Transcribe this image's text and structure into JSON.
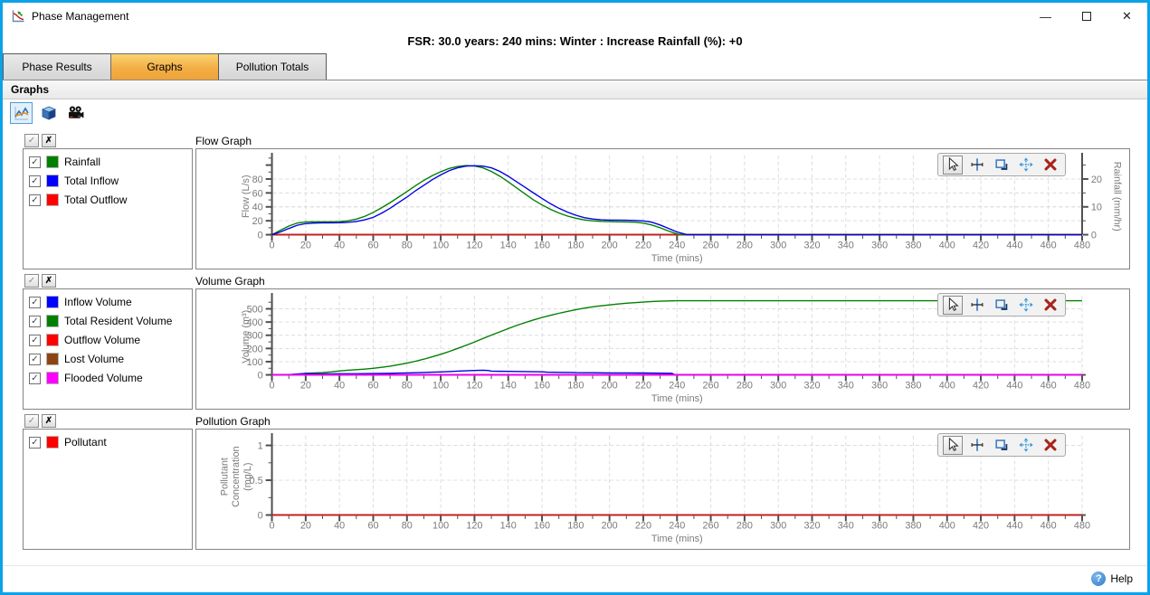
{
  "window": {
    "title": "Phase Management",
    "controls": {
      "minimize": "—",
      "close": "✕"
    }
  },
  "header": {
    "title": "FSR: 30.0 years: 240 mins: Winter : Increase Rainfall (%): +0"
  },
  "tabs": [
    {
      "label": "Phase Results",
      "active": false
    },
    {
      "label": "Graphs",
      "active": true
    },
    {
      "label": "Pollution Totals",
      "active": false
    }
  ],
  "section": {
    "title": "Graphs"
  },
  "legend_controls": {
    "check_glyph": "✓",
    "uncheck_glyph": "✗"
  },
  "rows": [
    {
      "legend_items": [
        {
          "label": "Rainfall",
          "color": "#008000",
          "checked": true
        },
        {
          "label": "Total Inflow",
          "color": "#0000ff",
          "checked": true
        },
        {
          "label": "Total Outflow",
          "color": "#ff0000",
          "checked": true
        }
      ]
    },
    {
      "legend_items": [
        {
          "label": "Inflow Volume",
          "color": "#0000ff",
          "checked": true
        },
        {
          "label": "Total Resident Volume",
          "color": "#008000",
          "checked": true
        },
        {
          "label": "Outflow Volume",
          "color": "#ff0000",
          "checked": true
        },
        {
          "label": "Lost Volume",
          "color": "#8b4513",
          "checked": true
        },
        {
          "label": "Flooded Volume",
          "color": "#ff00ff",
          "checked": true
        }
      ]
    },
    {
      "legend_items": [
        {
          "label": "Pollutant",
          "color": "#ff0000",
          "checked": true
        }
      ]
    }
  ],
  "chart_data": [
    {
      "type": "line",
      "title": "Flow Graph",
      "xlabel": "Time (mins)",
      "ylabel": "Flow (L/s)",
      "y2label": "Rainfall (mm/hr)",
      "xlim": [
        0,
        480
      ],
      "xstep": 20,
      "xminor": 10,
      "xticks": [
        0,
        20,
        40,
        60,
        80,
        100,
        120,
        140,
        160,
        180,
        200,
        220,
        240,
        260,
        280,
        300,
        320,
        340,
        360,
        380,
        400,
        420,
        440,
        460,
        480
      ],
      "ylim": [
        0,
        110
      ],
      "yticks": [
        0,
        20,
        40,
        60,
        80
      ],
      "yminor": 10,
      "y2lim": [
        0,
        27.5
      ],
      "y2ticks": [
        0,
        10,
        20
      ],
      "y2minor": 5,
      "grid": true,
      "legend_position": "left-panel",
      "series": [
        {
          "name": "Total Outflow",
          "color": "#c41e1e",
          "width": 2,
          "points": [
            [
              0,
              0
            ],
            [
              480,
              0
            ]
          ]
        },
        {
          "name": "Rainfall",
          "color": "#008000",
          "axis": "y2",
          "points": [
            [
              0,
              0
            ],
            [
              5,
              1.6
            ],
            [
              10,
              3.1
            ],
            [
              15,
              4.2
            ],
            [
              20,
              4.6
            ],
            [
              25,
              4.65
            ],
            [
              30,
              4.65
            ],
            [
              35,
              4.65
            ],
            [
              40,
              4.7
            ],
            [
              45,
              5
            ],
            [
              50,
              5.6
            ],
            [
              55,
              6.6
            ],
            [
              60,
              8
            ],
            [
              65,
              9.7
            ],
            [
              70,
              11.5
            ],
            [
              75,
              13.5
            ],
            [
              80,
              15.5
            ],
            [
              85,
              17.6
            ],
            [
              90,
              19.5
            ],
            [
              95,
              21.2
            ],
            [
              100,
              22.6
            ],
            [
              105,
              23.8
            ],
            [
              110,
              24.5
            ],
            [
              115,
              24.8
            ],
            [
              120,
              24.7
            ],
            [
              125,
              24
            ],
            [
              130,
              22.7
            ],
            [
              135,
              21
            ],
            [
              140,
              19
            ],
            [
              145,
              16.8
            ],
            [
              150,
              14.6
            ],
            [
              155,
              12.5
            ],
            [
              160,
              10.7
            ],
            [
              165,
              9.1
            ],
            [
              170,
              7.8
            ],
            [
              175,
              6.7
            ],
            [
              180,
              5.9
            ],
            [
              185,
              5.3
            ],
            [
              190,
              5
            ],
            [
              195,
              4.8
            ],
            [
              200,
              4.7
            ],
            [
              205,
              4.65
            ],
            [
              210,
              4.6
            ],
            [
              215,
              4.5
            ],
            [
              220,
              4.2
            ],
            [
              225,
              3.5
            ],
            [
              230,
              2.5
            ],
            [
              235,
              1.3
            ],
            [
              240,
              0.3
            ],
            [
              243,
              0
            ],
            [
              480,
              0
            ]
          ]
        },
        {
          "name": "Total Inflow",
          "color": "#0000e6",
          "points": [
            [
              0,
              0
            ],
            [
              5,
              4
            ],
            [
              10,
              9
            ],
            [
              15,
              13.5
            ],
            [
              20,
              16
            ],
            [
              25,
              16.8
            ],
            [
              30,
              17
            ],
            [
              35,
              17
            ],
            [
              40,
              17.2
            ],
            [
              45,
              17.8
            ],
            [
              50,
              19
            ],
            [
              55,
              21.5
            ],
            [
              60,
              25
            ],
            [
              65,
              31
            ],
            [
              70,
              38
            ],
            [
              75,
              46
            ],
            [
              80,
              54
            ],
            [
              85,
              63
            ],
            [
              90,
              71
            ],
            [
              95,
              79
            ],
            [
              100,
              86
            ],
            [
              105,
              92
            ],
            [
              110,
              96
            ],
            [
              115,
              98.5
            ],
            [
              120,
              99
            ],
            [
              125,
              98.5
            ],
            [
              130,
              96
            ],
            [
              135,
              91
            ],
            [
              140,
              84
            ],
            [
              145,
              76
            ],
            [
              150,
              68
            ],
            [
              155,
              60
            ],
            [
              160,
              52
            ],
            [
              165,
              44.5
            ],
            [
              170,
              38
            ],
            [
              175,
              32.5
            ],
            [
              180,
              28
            ],
            [
              185,
              24.5
            ],
            [
              190,
              22.5
            ],
            [
              195,
              21.5
            ],
            [
              200,
              21
            ],
            [
              205,
              21
            ],
            [
              210,
              20.8
            ],
            [
              215,
              20.5
            ],
            [
              220,
              19.8
            ],
            [
              225,
              18
            ],
            [
              230,
              14
            ],
            [
              235,
              9
            ],
            [
              240,
              4
            ],
            [
              246,
              0
            ],
            [
              480,
              0
            ]
          ]
        }
      ]
    },
    {
      "type": "line",
      "title": "Volume Graph",
      "xlabel": "Time (mins)",
      "ylabel": "Volume (m³)",
      "xlim": [
        0,
        480
      ],
      "xstep": 20,
      "xminor": 10,
      "xticks": [
        0,
        20,
        40,
        60,
        80,
        100,
        120,
        140,
        160,
        180,
        200,
        220,
        240,
        260,
        280,
        300,
        320,
        340,
        360,
        380,
        400,
        420,
        440,
        460,
        480
      ],
      "ylim": [
        0,
        580
      ],
      "yticks": [
        0,
        100,
        200,
        300,
        400,
        500
      ],
      "yminor": 50,
      "grid": true,
      "legend_position": "left-panel",
      "series": [
        {
          "name": "Outflow Volume",
          "color": "#c41e1e",
          "width": 2,
          "points": [
            [
              0,
              0
            ],
            [
              480,
              0
            ]
          ]
        },
        {
          "name": "Lost Volume",
          "color": "#8b4513",
          "width": 2,
          "points": [
            [
              0,
              0
            ],
            [
              480,
              0
            ]
          ]
        },
        {
          "name": "Total Resident Volume",
          "color": "#008000",
          "points": [
            [
              0,
              0
            ],
            [
              10,
              1
            ],
            [
              15,
              5
            ],
            [
              20,
              12
            ],
            [
              25,
              15
            ],
            [
              30,
              17
            ],
            [
              35,
              22
            ],
            [
              40,
              30
            ],
            [
              45,
              35
            ],
            [
              50,
              39
            ],
            [
              55,
              44
            ],
            [
              60,
              50
            ],
            [
              65,
              57
            ],
            [
              70,
              66
            ],
            [
              75,
              77
            ],
            [
              80,
              89
            ],
            [
              85,
              103
            ],
            [
              90,
              119
            ],
            [
              95,
              137
            ],
            [
              100,
              156
            ],
            [
              105,
              177
            ],
            [
              110,
              200
            ],
            [
              115,
              224
            ],
            [
              120,
              249
            ],
            [
              125,
              275
            ],
            [
              130,
              301
            ],
            [
              135,
              326
            ],
            [
              140,
              351
            ],
            [
              145,
              374
            ],
            [
              150,
              396
            ],
            [
              155,
              416
            ],
            [
              160,
              434
            ],
            [
              165,
              451
            ],
            [
              170,
              466
            ],
            [
              175,
              480
            ],
            [
              180,
              494
            ],
            [
              185,
              505
            ],
            [
              190,
              515
            ],
            [
              195,
              523
            ],
            [
              200,
              530
            ],
            [
              205,
              537
            ],
            [
              210,
              542
            ],
            [
              215,
              547
            ],
            [
              220,
              551
            ],
            [
              225,
              555
            ],
            [
              230,
              558
            ],
            [
              235,
              560
            ],
            [
              240,
              561
            ],
            [
              480,
              562
            ]
          ]
        },
        {
          "name": "Inflow Volume",
          "color": "#0000e6",
          "points": [
            [
              0,
              0
            ],
            [
              10,
              2
            ],
            [
              15,
              7
            ],
            [
              20,
              10
            ],
            [
              25,
              9
            ],
            [
              30,
              8
            ],
            [
              35,
              8
            ],
            [
              40,
              9
            ],
            [
              45,
              9
            ],
            [
              50,
              9
            ],
            [
              55,
              9.5
            ],
            [
              60,
              10
            ],
            [
              65,
              11
            ],
            [
              70,
              12
            ],
            [
              75,
              13.5
            ],
            [
              80,
              15
            ],
            [
              85,
              16.5
            ],
            [
              90,
              18
            ],
            [
              95,
              20
            ],
            [
              100,
              22
            ],
            [
              105,
              25
            ],
            [
              110,
              28
            ],
            [
              115,
              31
            ],
            [
              120,
              33
            ],
            [
              125,
              35
            ],
            [
              128,
              33
            ],
            [
              130,
              28
            ],
            [
              135,
              27
            ],
            [
              140,
              26
            ],
            [
              145,
              25.5
            ],
            [
              150,
              25
            ],
            [
              155,
              24
            ],
            [
              160,
              23
            ],
            [
              163,
              20
            ],
            [
              170,
              19
            ],
            [
              178,
              18
            ],
            [
              180,
              17
            ],
            [
              185,
              16.5
            ],
            [
              190,
              16
            ],
            [
              195,
              15.5
            ],
            [
              200,
              15
            ],
            [
              210,
              15
            ],
            [
              220,
              14
            ],
            [
              230,
              13
            ],
            [
              237,
              12
            ],
            [
              239,
              0
            ],
            [
              480,
              0
            ]
          ]
        },
        {
          "name": "Flooded Volume",
          "color": "#ee00ee",
          "width": 2,
          "points": [
            [
              0,
              0
            ],
            [
              480,
              0
            ]
          ]
        }
      ]
    },
    {
      "type": "line",
      "title": "Pollution Graph",
      "xlabel": "Time (mins)",
      "ylabel": [
        "Pollutant",
        "Concentration",
        "(mg/L)"
      ],
      "xlim": [
        0,
        480
      ],
      "xstep": 20,
      "xminor": 10,
      "xticks": [
        0,
        20,
        40,
        60,
        80,
        100,
        120,
        140,
        160,
        180,
        200,
        220,
        240,
        260,
        280,
        300,
        320,
        340,
        360,
        380,
        400,
        420,
        440,
        460,
        480
      ],
      "ylim": [
        0,
        1.1
      ],
      "yticks": [
        0,
        0.5,
        1
      ],
      "yminor": 0.25,
      "grid": true,
      "legend_position": "left-panel",
      "series": [
        {
          "name": "Pollutant",
          "color": "#c41e1e",
          "width": 2,
          "points": [
            [
              0,
              0
            ],
            [
              480,
              0
            ]
          ]
        }
      ]
    }
  ],
  "help": {
    "label": "Help",
    "icon_glyph": "?"
  },
  "colors": {
    "window_border": "#0da2e8",
    "active_tab_top": "#fbd46e",
    "active_tab_bottom": "#efa338",
    "axis": "#4d4d4d",
    "tick_label": "#7a7a7a",
    "gridline": "#dcdcdc"
  }
}
